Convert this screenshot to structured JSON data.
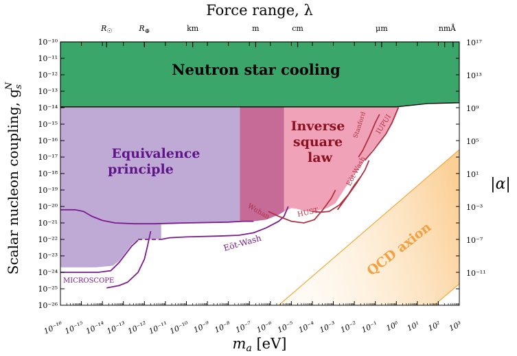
{
  "chart_data": {
    "type": "exclusion-plot",
    "title_top": "Force range, λ",
    "xlabel_main": "m",
    "xlabel_sub": "a",
    "xlabel_unit": " [eV]",
    "ylabel_left": "Scalar nucleon coupling, g",
    "ylabel_left_sub": "s",
    "ylabel_left_sup": "N",
    "ylabel_right": "|α|",
    "xlim_log10_eV": [
      -16,
      3
    ],
    "ylim_log10_gs": [
      -26,
      -10
    ],
    "x_ticks": [
      {
        "exp": -16,
        "label": "10⁻¹⁶"
      },
      {
        "exp": -15,
        "label": "10⁻¹⁵"
      },
      {
        "exp": -14,
        "label": "10⁻¹⁴"
      },
      {
        "exp": -13,
        "label": "10⁻¹³"
      },
      {
        "exp": -12,
        "label": "10⁻¹²"
      },
      {
        "exp": -11,
        "label": "10⁻¹¹"
      },
      {
        "exp": -10,
        "label": "10⁻¹⁰"
      },
      {
        "exp": -9,
        "label": "10⁻⁹"
      },
      {
        "exp": -8,
        "label": "10⁻⁸"
      },
      {
        "exp": -7,
        "label": "10⁻⁷"
      },
      {
        "exp": -6,
        "label": "10⁻⁶"
      },
      {
        "exp": -5,
        "label": "10⁻⁵"
      },
      {
        "exp": -4,
        "label": "10⁻⁴"
      },
      {
        "exp": -3,
        "label": "10⁻³"
      },
      {
        "exp": -2,
        "label": "10⁻²"
      },
      {
        "exp": -1,
        "label": "10⁻¹"
      },
      {
        "exp": 0,
        "label": "10⁰"
      },
      {
        "exp": 1,
        "label": "10¹"
      },
      {
        "exp": 2,
        "label": "10²"
      },
      {
        "exp": 3,
        "label": "10³"
      }
    ],
    "y_ticks": [
      {
        "exp": -10,
        "label": "10⁻¹⁰"
      },
      {
        "exp": -11,
        "label": "10⁻¹¹"
      },
      {
        "exp": -12,
        "label": "10⁻¹²"
      },
      {
        "exp": -13,
        "label": "10⁻¹³"
      },
      {
        "exp": -14,
        "label": "10⁻¹⁴"
      },
      {
        "exp": -15,
        "label": "10⁻¹⁵"
      },
      {
        "exp": -16,
        "label": "10⁻¹⁶"
      },
      {
        "exp": -17,
        "label": "10⁻¹⁷"
      },
      {
        "exp": -18,
        "label": "10⁻¹⁸"
      },
      {
        "exp": -19,
        "label": "10⁻¹⁹"
      },
      {
        "exp": -20,
        "label": "10⁻²⁰"
      },
      {
        "exp": -21,
        "label": "10⁻²¹"
      },
      {
        "exp": -22,
        "label": "10⁻²²"
      },
      {
        "exp": -23,
        "label": "10⁻²³"
      },
      {
        "exp": -24,
        "label": "10⁻²⁴"
      },
      {
        "exp": -25,
        "label": "10⁻²⁵"
      },
      {
        "exp": -26,
        "label": "10⁻²⁶"
      }
    ],
    "right_ticks": [
      {
        "gs_exp": -10,
        "label": "10¹⁷"
      },
      {
        "gs_exp": -12,
        "label": "10¹³"
      },
      {
        "gs_exp": -14,
        "label": "10⁹"
      },
      {
        "gs_exp": -16,
        "label": "10⁵"
      },
      {
        "gs_exp": -18,
        "label": "10¹"
      },
      {
        "gs_exp": -20,
        "label": "10⁻³"
      },
      {
        "gs_exp": -22,
        "label": "10⁻⁷"
      },
      {
        "gs_exp": -24,
        "label": "10⁻¹¹"
      }
    ],
    "top_ticks": [
      {
        "log10_ma": -13.8,
        "label": "R☉"
      },
      {
        "log10_ma": -12.0,
        "label": "R⊕"
      },
      {
        "log10_ma": -9.7,
        "label": "km"
      },
      {
        "log10_ma": -6.7,
        "label": "m"
      },
      {
        "log10_ma": -4.7,
        "label": "cm"
      },
      {
        "log10_ma": -0.7,
        "label": "μm"
      },
      {
        "log10_ma": 2.3,
        "label": "nm"
      },
      {
        "log10_ma": 2.7,
        "label": "Å"
      }
    ],
    "regions": {
      "neutron_star": {
        "label": "Neutron star cooling",
        "color": "#3aa66a",
        "points": [
          [
            -16,
            -10
          ],
          [
            3,
            -10
          ],
          [
            3,
            -13.7
          ],
          [
            1.5,
            -13.75
          ],
          [
            0,
            -13.95
          ],
          [
            -16,
            -13.95
          ]
        ]
      },
      "equivalence": {
        "label_line1": "Equivalence",
        "label_line2": "principle",
        "color": "#bfaad6",
        "points": [
          [
            -16,
            -13.95
          ],
          [
            -7.45,
            -13.95
          ],
          [
            -7.45,
            -20.9
          ],
          [
            -10.5,
            -21.0
          ],
          [
            -11.2,
            -21.0
          ],
          [
            -11.2,
            -22.0
          ],
          [
            -12.3,
            -22.0
          ],
          [
            -12.6,
            -22.3
          ],
          [
            -12.9,
            -22.8
          ],
          [
            -13.2,
            -23.3
          ],
          [
            -13.5,
            -23.6
          ],
          [
            -14.3,
            -23.7
          ],
          [
            -16,
            -23.7
          ]
        ]
      },
      "overlap": {
        "color": "#c66a97",
        "points": [
          [
            -7.45,
            -13.95
          ],
          [
            -5.35,
            -13.95
          ],
          [
            -5.35,
            -20.3
          ],
          [
            -5.6,
            -20.5
          ],
          [
            -6.2,
            -20.8
          ],
          [
            -6.8,
            -20.9
          ],
          [
            -7.45,
            -20.9
          ]
        ]
      },
      "inverse_square": {
        "label_line1": "Inverse",
        "label_line2": "square",
        "label_line3": "law",
        "color": "#f0a3b8",
        "points": [
          [
            -5.35,
            -13.95
          ],
          [
            0.15,
            -13.95
          ],
          [
            -0.2,
            -15.0
          ],
          [
            -0.55,
            -15.7
          ],
          [
            -1.1,
            -16.5
          ],
          [
            -1.5,
            -17.2
          ],
          [
            -1.9,
            -17.9
          ],
          [
            -2.4,
            -18.8
          ],
          [
            -2.9,
            -19.8
          ],
          [
            -3.3,
            -20.1
          ],
          [
            -3.9,
            -20.3
          ],
          [
            -4.3,
            -20.3
          ],
          [
            -4.7,
            -20.15
          ],
          [
            -5.0,
            -20.1
          ],
          [
            -5.35,
            -20.3
          ]
        ]
      },
      "qcd_axion": {
        "label": "QCD axion",
        "color": "#fbd7a3",
        "upper_line": [
          [
            -5.6,
            -26
          ],
          [
            3,
            -16.55
          ]
        ],
        "lower_line": [
          [
            1.8,
            -26
          ],
          [
            3,
            -24.7
          ]
        ]
      }
    },
    "curves": [
      {
        "name": "MICROSCOPE",
        "color": "#7b1a8c",
        "points": [
          [
            -16,
            -24.0
          ],
          [
            -14.2,
            -24.0
          ],
          [
            -13.6,
            -23.9
          ],
          [
            -13.2,
            -23.4
          ],
          [
            -12.9,
            -22.9
          ],
          [
            -12.6,
            -22.4
          ],
          [
            -12.3,
            -22.05
          ]
        ]
      },
      {
        "name": "MICROSCOPE_right",
        "color": "#7b1a8c",
        "points": [
          [
            -13.8,
            -24.95
          ],
          [
            -13.2,
            -24.8
          ],
          [
            -12.8,
            -24.6
          ],
          [
            -12.3,
            -24.0
          ],
          [
            -12.0,
            -23.2
          ],
          [
            -11.85,
            -22.4
          ],
          [
            -11.7,
            -21.5
          ]
        ]
      },
      {
        "name": "EP_upper",
        "color": "#7b1a8c",
        "points": [
          [
            -16,
            -20.2
          ],
          [
            -15.3,
            -20.2
          ],
          [
            -14.9,
            -20.3
          ],
          [
            -14.5,
            -20.6
          ],
          [
            -14.0,
            -20.85
          ],
          [
            -13.4,
            -21.0
          ],
          [
            -12.5,
            -21.05
          ],
          [
            -11.5,
            -21.05
          ],
          [
            -10.0,
            -21.0
          ],
          [
            -8.0,
            -20.95
          ],
          [
            -7.3,
            -20.9
          ],
          [
            -6.8,
            -20.9
          ]
        ]
      },
      {
        "name": "Eot-Wash",
        "color": "#7b1a8c",
        "points": [
          [
            -11.2,
            -22.0
          ],
          [
            -10.8,
            -21.9
          ],
          [
            -10.0,
            -21.85
          ],
          [
            -8.5,
            -21.8
          ],
          [
            -7.5,
            -21.75
          ],
          [
            -6.8,
            -21.6
          ],
          [
            -6.2,
            -21.3
          ],
          [
            -5.6,
            -20.9
          ],
          [
            -5.35,
            -20.6
          ],
          [
            -5.15,
            -20.0
          ]
        ]
      },
      {
        "name": "Eot-Wash_dashed",
        "color": "#7b1a8c",
        "dashed": true,
        "points": [
          [
            -12.3,
            -22.0
          ],
          [
            -11.2,
            -22.0
          ]
        ]
      },
      {
        "name": "Wuhan",
        "color": "#b03040",
        "points": [
          [
            -6.1,
            -20.3
          ],
          [
            -5.6,
            -20.6
          ],
          [
            -5.0,
            -20.9
          ],
          [
            -4.4,
            -21.0
          ],
          [
            -3.9,
            -20.8
          ],
          [
            -3.5,
            -20.2
          ],
          [
            -3.1,
            -19.5
          ],
          [
            -2.9,
            -19.0
          ]
        ]
      },
      {
        "name": "HUST",
        "color": "#b03040",
        "points": [
          [
            -4.0,
            -20.3
          ],
          [
            -3.6,
            -20.35
          ],
          [
            -3.2,
            -20.3
          ],
          [
            -2.7,
            -19.9
          ],
          [
            -2.3,
            -19.3
          ],
          [
            -2.0,
            -18.7
          ],
          [
            -1.7,
            -18.2
          ]
        ]
      },
      {
        "name": "Eot-Wash_ISL",
        "color": "#b03040",
        "points": [
          [
            -2.8,
            -20.2
          ],
          [
            -2.4,
            -19.5
          ],
          [
            -1.9,
            -18.6
          ],
          [
            -1.5,
            -17.8
          ],
          [
            -1.3,
            -17.2
          ]
        ]
      },
      {
        "name": "Stanford",
        "color": "#b03040",
        "points": [
          [
            -1.8,
            -17.0
          ],
          [
            -1.6,
            -16.6
          ],
          [
            -1.3,
            -15.8
          ],
          [
            -1.0,
            -14.9
          ],
          [
            -0.8,
            -14.4
          ]
        ]
      },
      {
        "name": "IUPUI",
        "color": "#b03040",
        "points": [
          [
            -1.5,
            -17.2
          ],
          [
            -1.1,
            -16.6
          ],
          [
            -0.5,
            -15.6
          ],
          [
            -0.2,
            -14.9
          ],
          [
            0.1,
            -13.98
          ]
        ]
      }
    ],
    "curve_labels": [
      {
        "text": "MICROSCOPE",
        "color": "#7b1a8c"
      },
      {
        "text": "Eöt-Wash",
        "color": "#7b1a8c"
      },
      {
        "text": "Wuhan",
        "color": "#b03040"
      },
      {
        "text": "HUST",
        "color": "#b03040"
      },
      {
        "text": "Eöt-Wash",
        "color": "#b03040"
      },
      {
        "text": "Stanford",
        "color": "#b03040"
      },
      {
        "text": "IUPUI",
        "color": "#b03040"
      }
    ]
  }
}
